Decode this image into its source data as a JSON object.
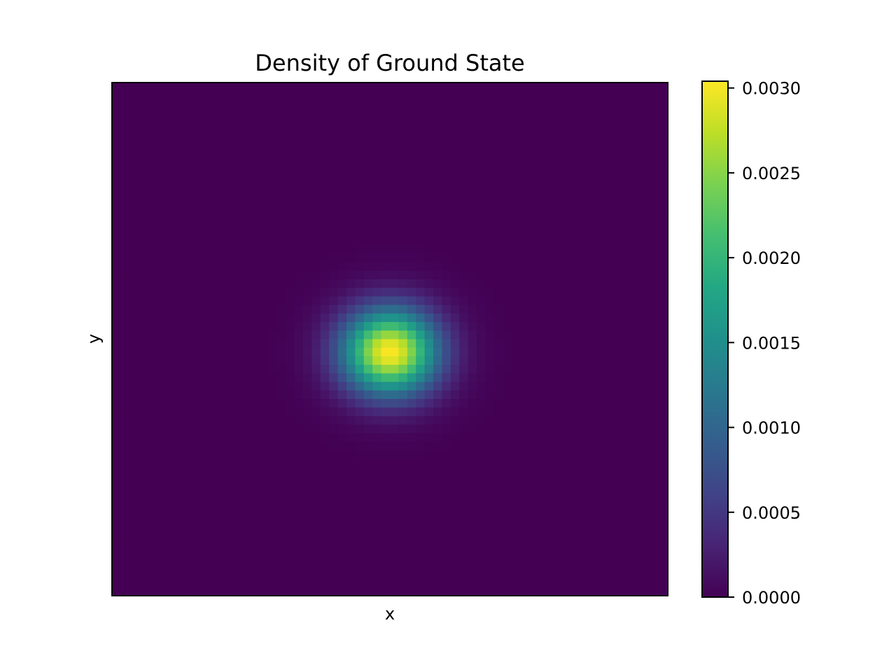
{
  "chart_data": {
    "type": "heatmap",
    "title": "Density of Ground State",
    "xlabel": "x",
    "ylabel": "y",
    "colormap": "viridis",
    "grid": false,
    "show_axis_ticks": false,
    "grid_shape": [
      64,
      60
    ],
    "peak": {
      "x_fraction": 0.5,
      "y_fraction": 0.525,
      "value": 0.00304
    },
    "spread_fraction": {
      "x": 0.06,
      "y": 0.058
    },
    "colorbar": {
      "min": 0.0,
      "max": 0.00304,
      "ticks": [
        0.0,
        0.0005,
        0.001,
        0.0015,
        0.002,
        0.0025,
        0.003
      ],
      "tick_labels": [
        "0.0000",
        "0.0005",
        "0.0010",
        "0.0015",
        "0.0020",
        "0.0025",
        "0.0030"
      ]
    }
  }
}
